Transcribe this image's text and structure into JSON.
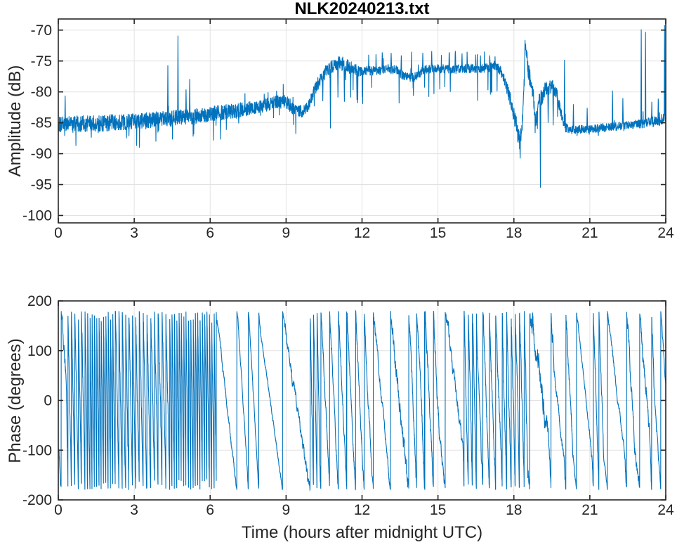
{
  "figure": {
    "title": "NLK20240213.txt"
  },
  "chart_data": [
    {
      "type": "line",
      "title": "NLK20240213.txt",
      "ylabel": "Amplitude (dB)",
      "xlabel": "",
      "xlim": [
        0,
        24
      ],
      "ylim": [
        -101.2,
        -68.2
      ],
      "xticks": [
        0,
        3,
        6,
        9,
        12,
        15,
        18,
        21,
        24
      ],
      "yticks": [
        -70,
        -75,
        -80,
        -85,
        -90,
        -95,
        -100
      ],
      "grid": true,
      "legend": "none",
      "line_color": "#0072BD",
      "series_model": {
        "kind": "noisy_envelope",
        "dt": 0.008,
        "envelope": [
          [
            0,
            -85.3
          ],
          [
            0.5,
            -85.25
          ],
          [
            1,
            -85.2
          ],
          [
            1.5,
            -85.1
          ],
          [
            2,
            -85.0
          ],
          [
            2.5,
            -84.9
          ],
          [
            3,
            -84.8
          ],
          [
            3.5,
            -84.6
          ],
          [
            4,
            -84.45
          ],
          [
            4.5,
            -84.3
          ],
          [
            5,
            -84.1
          ],
          [
            5.5,
            -83.9
          ],
          [
            6,
            -83.6
          ],
          [
            6.5,
            -83.3
          ],
          [
            7,
            -83.0
          ],
          [
            7.5,
            -82.7
          ],
          [
            8,
            -82.3
          ],
          [
            8.5,
            -81.8
          ],
          [
            8.9,
            -81.4
          ],
          [
            9.1,
            -81.9
          ],
          [
            9.3,
            -82.9
          ],
          [
            9.6,
            -83.2
          ],
          [
            9.85,
            -82.5
          ],
          [
            10.05,
            -80.5
          ],
          [
            10.3,
            -78.3
          ],
          [
            10.6,
            -76.6
          ],
          [
            10.9,
            -75.6
          ],
          [
            11.15,
            -75.3
          ],
          [
            11.4,
            -75.8
          ],
          [
            11.65,
            -76.3
          ],
          [
            11.9,
            -76.7
          ],
          [
            12.15,
            -76.5
          ],
          [
            12.6,
            -76.6
          ],
          [
            13,
            -76.3
          ],
          [
            13.35,
            -76.4
          ],
          [
            13.55,
            -77.2
          ],
          [
            13.85,
            -77.6
          ],
          [
            14.05,
            -77.7
          ],
          [
            14.3,
            -76.9
          ],
          [
            14.5,
            -76.3
          ],
          [
            15,
            -76.2
          ],
          [
            15.5,
            -76.4
          ],
          [
            16,
            -76.2
          ],
          [
            16.5,
            -76.3
          ],
          [
            17,
            -76.1
          ],
          [
            17.25,
            -75.7
          ],
          [
            17.45,
            -76.4
          ],
          [
            17.65,
            -78.2
          ],
          [
            17.85,
            -81.0
          ],
          [
            18.05,
            -84.5
          ],
          [
            18.18,
            -87.0
          ],
          [
            18.24,
            -88.4
          ],
          [
            18.32,
            -85.3
          ],
          [
            18.4,
            -79.5
          ],
          [
            18.45,
            -73.0
          ],
          [
            18.52,
            -75.0
          ],
          [
            18.62,
            -77.6
          ],
          [
            18.75,
            -80.3
          ],
          [
            18.87,
            -84.5
          ],
          [
            18.93,
            -83.0
          ],
          [
            19.0,
            -80.8
          ],
          [
            19.1,
            -80.9
          ],
          [
            19.2,
            -79.8
          ],
          [
            19.35,
            -79.4
          ],
          [
            19.55,
            -79.3
          ],
          [
            19.7,
            -80.4
          ],
          [
            19.85,
            -83.2
          ],
          [
            20.0,
            -85.6
          ],
          [
            20.15,
            -86.2
          ],
          [
            20.5,
            -86.1
          ],
          [
            21,
            -86.0
          ],
          [
            21.5,
            -85.8
          ],
          [
            22,
            -85.6
          ],
          [
            22.5,
            -85.4
          ],
          [
            23,
            -85.1
          ],
          [
            23.4,
            -84.9
          ],
          [
            23.7,
            -84.7
          ],
          [
            24,
            -84.3
          ]
        ],
        "noise_halfwidth": [
          [
            0,
            1.4
          ],
          [
            3,
            1.35
          ],
          [
            5,
            1.3
          ],
          [
            7,
            1.25
          ],
          [
            8.5,
            1.1
          ],
          [
            9.2,
            1.1
          ],
          [
            9.9,
            1.0
          ],
          [
            10.4,
            1.1
          ],
          [
            11.2,
            1.2
          ],
          [
            11.9,
            0.9
          ],
          [
            12.3,
            0.75
          ],
          [
            17.3,
            0.75
          ],
          [
            17.6,
            1.0
          ],
          [
            18.1,
            1.6
          ],
          [
            18.6,
            1.6
          ],
          [
            19.1,
            1.4
          ],
          [
            19.6,
            1.1
          ],
          [
            19.9,
            0.9
          ],
          [
            20.3,
            0.7
          ],
          [
            22.5,
            0.7
          ],
          [
            23.2,
            0.85
          ],
          [
            24,
            0.95
          ]
        ],
        "down_bursts": [
          {
            "range": [
              0,
              9.6
            ],
            "p": 0.028,
            "mag": [
              1.2,
              3.6
            ]
          },
          {
            "range": [
              9.6,
              12.1
            ],
            "p": 0.02,
            "mag": [
              1.5,
              5.5
            ]
          },
          {
            "range": [
              12.1,
              17.5
            ],
            "p": 0.03,
            "mag": [
              2.0,
              4.8
            ]
          },
          {
            "range": [
              17.5,
              19.9
            ],
            "p": 0.03,
            "mag": [
              1.0,
              3.0
            ]
          },
          {
            "range": [
              19.9,
              24
            ],
            "p": 0.012,
            "mag": [
              0.5,
              1.5
            ]
          }
        ],
        "up_bursts": [
          {
            "range": [
              2.5,
              9.6
            ],
            "p": 0.012,
            "mag": [
              1.0,
              2.2
            ]
          },
          {
            "range": [
              12.1,
              17.5
            ],
            "p": 0.02,
            "mag": [
              1.5,
              2.9
            ]
          },
          {
            "range": [
              19.9,
              24
            ],
            "p": 0.008,
            "mag": [
              0.8,
              2.0
            ]
          }
        ],
        "spikes": [
          [
            0.27,
            -80.6
          ],
          [
            4.33,
            -75.7
          ],
          [
            4.73,
            -70.9
          ],
          [
            5.05,
            -79.6
          ],
          [
            5.19,
            -77.9
          ],
          [
            10.45,
            -81.5
          ],
          [
            10.75,
            -85.9
          ],
          [
            11.05,
            -80.9
          ],
          [
            11.3,
            -81.6
          ],
          [
            11.55,
            -80.9
          ],
          [
            11.8,
            -81.3
          ],
          [
            12.55,
            -73.9
          ],
          [
            12.8,
            -73.6
          ],
          [
            13.15,
            -73.7
          ],
          [
            13.55,
            -74.1
          ],
          [
            13.95,
            -73.5
          ],
          [
            14.4,
            -73.7
          ],
          [
            14.75,
            -73.4
          ],
          [
            15.45,
            -73.6
          ],
          [
            15.95,
            -73.8
          ],
          [
            16.15,
            -73.5
          ],
          [
            16.55,
            -73.9
          ],
          [
            17.05,
            -74.1
          ],
          [
            18.44,
            -71.6
          ],
          [
            19.05,
            -95.5
          ],
          [
            19.35,
            -85.0
          ],
          [
            19.55,
            -85.4
          ],
          [
            20.0,
            -74.8
          ],
          [
            20.35,
            -82.0
          ],
          [
            20.9,
            -82.6
          ],
          [
            21.9,
            -79.8
          ],
          [
            22.3,
            -81.0
          ],
          [
            23.03,
            -69.9
          ],
          [
            23.2,
            -70.3
          ],
          [
            23.45,
            -81.6
          ],
          [
            23.7,
            -81.1
          ],
          [
            23.95,
            -69.2
          ]
        ]
      }
    },
    {
      "type": "line",
      "title": "",
      "ylabel": "Phase (degrees)",
      "xlabel": "Time (hours after midnight UTC)",
      "xlim": [
        0,
        24
      ],
      "ylim": [
        -200,
        200
      ],
      "xticks": [
        0,
        3,
        6,
        9,
        12,
        15,
        18,
        21,
        24
      ],
      "yticks": [
        200,
        100,
        0,
        -100,
        -200
      ],
      "grid": true,
      "legend": "none",
      "line_color": "#0072BD",
      "series_model": {
        "kind": "wrapped_phase",
        "dt": 0.004,
        "start_phase": -95,
        "wrap_range": [
          -180,
          180
        ],
        "segments": [
          [
            0,
            0.3,
            -700,
            30
          ],
          [
            0.3,
            1.1,
            -2700,
            35
          ],
          [
            1.1,
            2.2,
            -4000,
            40
          ],
          [
            2.2,
            3.1,
            -2700,
            40
          ],
          [
            3.1,
            4.4,
            -2400,
            40
          ],
          [
            4.4,
            6.25,
            -3900,
            40
          ],
          [
            6.25,
            7.1,
            -450,
            12
          ],
          [
            7.1,
            7.55,
            -800,
            12
          ],
          [
            7.55,
            7.95,
            -900,
            10
          ],
          [
            7.95,
            8.95,
            -365,
            10
          ],
          [
            8.95,
            9.95,
            -335,
            22
          ],
          [
            9.95,
            10.35,
            -2600,
            30
          ],
          [
            10.35,
            12.4,
            -1060,
            22
          ],
          [
            12.4,
            13.1,
            -530,
            20
          ],
          [
            13.1,
            13.85,
            -500,
            35
          ],
          [
            13.85,
            15.05,
            -1100,
            30
          ],
          [
            15.05,
            16.0,
            -420,
            25
          ],
          [
            16.0,
            16.55,
            -2200,
            35
          ],
          [
            16.55,
            17.55,
            -1400,
            30
          ],
          [
            17.55,
            18.55,
            -2100,
            40
          ],
          [
            18.55,
            19.35,
            -380,
            45
          ],
          [
            19.35,
            19.6,
            -900,
            30
          ],
          [
            19.6,
            20.0,
            -470,
            18
          ],
          [
            20.0,
            20.35,
            -1000,
            25
          ],
          [
            20.35,
            21.1,
            -480,
            12
          ],
          [
            21.1,
            21.55,
            -1600,
            25
          ],
          [
            21.55,
            22.4,
            -430,
            12
          ],
          [
            22.4,
            22.75,
            -900,
            30
          ],
          [
            22.75,
            23.35,
            -550,
            30
          ],
          [
            23.35,
            23.55,
            -1500,
            25
          ],
          [
            23.55,
            24,
            -760,
            15
          ]
        ]
      }
    }
  ],
  "style": {
    "axis_color": "#262626",
    "grid_color": "#e2e2e2",
    "background": "#ffffff"
  }
}
